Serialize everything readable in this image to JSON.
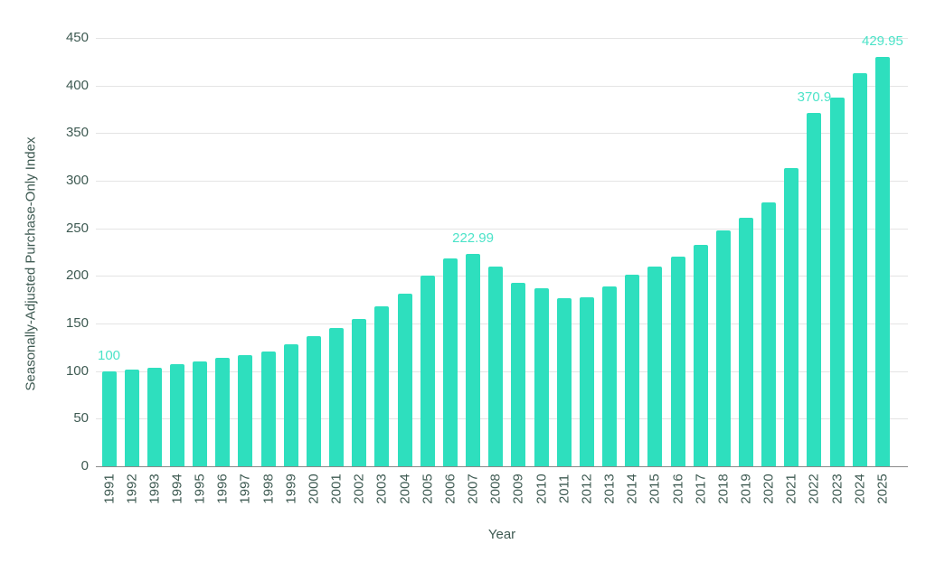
{
  "chart_data": {
    "type": "bar",
    "title": "",
    "xlabel": "Year",
    "ylabel": "Seasonally-Adjusted Purchase-Only Index",
    "categories": [
      "1991",
      "1992",
      "1993",
      "1994",
      "1995",
      "1996",
      "1997",
      "1998",
      "1999",
      "2000",
      "2001",
      "2002",
      "2003",
      "2004",
      "2005",
      "2006",
      "2007",
      "2008",
      "2009",
      "2010",
      "2011",
      "2012",
      "2013",
      "2014",
      "2015",
      "2016",
      "2017",
      "2018",
      "2019",
      "2020",
      "2021",
      "2022",
      "2023",
      "2024",
      "2025"
    ],
    "values": [
      100,
      101.5,
      103.5,
      107.5,
      110.5,
      113.5,
      116.5,
      121,
      128,
      136.5,
      145.5,
      155,
      168,
      181.5,
      200.5,
      218.5,
      222.99,
      210,
      192.5,
      187,
      177,
      178,
      189,
      201,
      209.5,
      220,
      233,
      248,
      261.5,
      277.5,
      313,
      370.9,
      387,
      413,
      429.95
    ],
    "annotations": [
      {
        "category": "1991",
        "text": "100"
      },
      {
        "category": "2007",
        "text": "222.99"
      },
      {
        "category": "2022",
        "text": "370.9"
      },
      {
        "category": "2025",
        "text": "429.95"
      }
    ],
    "ylim": [
      0,
      450
    ],
    "ytick_step": 50,
    "yticks": [
      0,
      50,
      100,
      150,
      200,
      250,
      300,
      350,
      400,
      450
    ],
    "grid": true,
    "legend": false,
    "colors": {
      "bar": "#2edfbe",
      "annotation_text": "#4be3c8",
      "axis_text": "#3e5a52",
      "gridline": "#e4e4e4",
      "zero_line": "#8a8a8a",
      "background": "#ffffff"
    }
  }
}
